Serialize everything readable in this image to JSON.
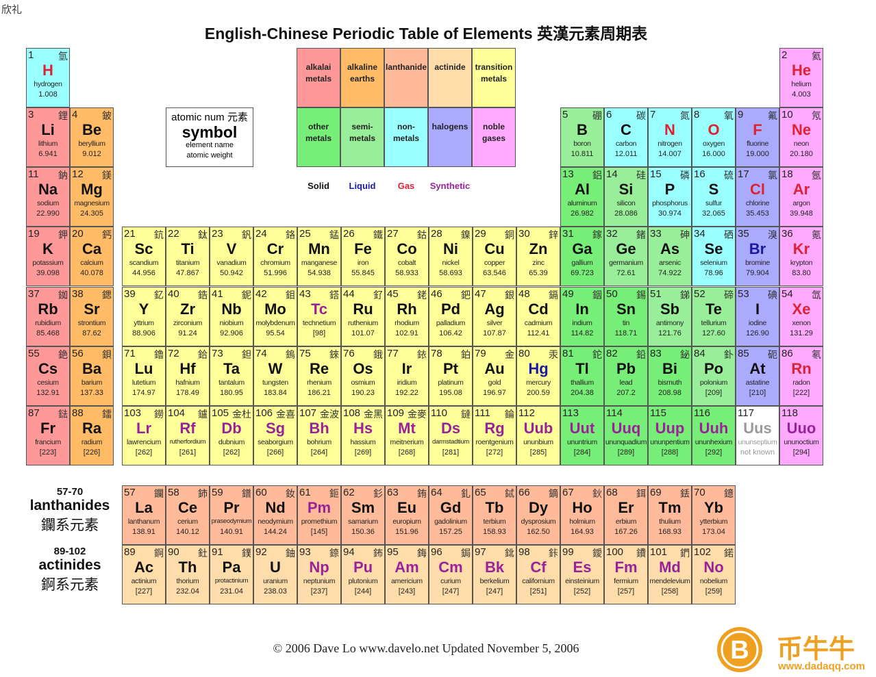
{
  "corner_text": "欣礼",
  "title": "English-Chinese Periodic Table of Elements 英漢元素周期表",
  "colors": {
    "a": "#ff9999",
    "e": "#ffbb66",
    "l": "#ffbb99",
    "c": "#ffddaa",
    "t": "#ffff99",
    "o": "#77ee77",
    "s": "#99ee99",
    "n": "#99ffff",
    "h": "#aaaaff",
    "g": "#ffaaff",
    "x": "#ffffff"
  },
  "state_colors": {
    "s": "#111111",
    "l": "#1a1aa0",
    "g": "#dd2233",
    "y": "#992299",
    "u": "#999999"
  },
  "legend": {
    "categories": [
      {
        "code": "a",
        "label": "alkalai metals"
      },
      {
        "code": "e",
        "label": "alkaline earths"
      },
      {
        "code": "l",
        "label": "lanthanide"
      },
      {
        "code": "c",
        "label": "actinide"
      },
      {
        "code": "t",
        "label": "transition metals"
      },
      {
        "code": "o",
        "label": "other metals"
      },
      {
        "code": "s",
        "label": "semi- metals"
      },
      {
        "code": "n",
        "label": "non- metals"
      },
      {
        "code": "h",
        "label": "halogens"
      },
      {
        "code": "g",
        "label": "noble gases"
      }
    ],
    "states": [
      {
        "code": "s",
        "label": "Solid"
      },
      {
        "code": "l",
        "label": "Liquid"
      },
      {
        "code": "g",
        "label": "Gas"
      },
      {
        "code": "y",
        "label": "Synthetic"
      }
    ]
  },
  "key": {
    "line1": "atomic num 元素",
    "symbol": "symbol",
    "name": "element name",
    "weight": "atomic weight"
  },
  "elements": [
    [
      1,
      "H",
      "hydrogen",
      "1.008",
      "氫",
      "n",
      "g",
      1,
      1
    ],
    [
      2,
      "He",
      "helium",
      "4.003",
      "氦",
      "g",
      "g",
      1,
      18
    ],
    [
      3,
      "Li",
      "lithium",
      "6.941",
      "鋰",
      "a",
      "s",
      2,
      1
    ],
    [
      4,
      "Be",
      "beryllium",
      "9.012",
      "鈹",
      "e",
      "s",
      2,
      2
    ],
    [
      5,
      "B",
      "boron",
      "10.811",
      "硼",
      "s",
      "s",
      2,
      13
    ],
    [
      6,
      "C",
      "carbon",
      "12.011",
      "碳",
      "n",
      "s",
      2,
      14
    ],
    [
      7,
      "N",
      "nitrogen",
      "14.007",
      "氮",
      "n",
      "g",
      2,
      15
    ],
    [
      8,
      "O",
      "oxygen",
      "16.000",
      "氧",
      "n",
      "g",
      2,
      16
    ],
    [
      9,
      "F",
      "fluorine",
      "19.000",
      "氟",
      "h",
      "g",
      2,
      17
    ],
    [
      10,
      "Ne",
      "neon",
      "20.180",
      "氖",
      "g",
      "g",
      2,
      18
    ],
    [
      11,
      "Na",
      "sodium",
      "22.990",
      "鈉",
      "a",
      "s",
      3,
      1
    ],
    [
      12,
      "Mg",
      "magnesium",
      "24.305",
      "鎂",
      "e",
      "s",
      3,
      2
    ],
    [
      13,
      "Al",
      "aluminum",
      "26.982",
      "鋁",
      "o",
      "s",
      3,
      13
    ],
    [
      14,
      "Si",
      "silicon",
      "28.086",
      "硅",
      "s",
      "s",
      3,
      14
    ],
    [
      15,
      "P",
      "phosphorus",
      "30.974",
      "磷",
      "n",
      "s",
      3,
      15
    ],
    [
      16,
      "S",
      "sulfur",
      "32.065",
      "硫",
      "n",
      "s",
      3,
      16
    ],
    [
      17,
      "Cl",
      "chlorine",
      "35.453",
      "氯",
      "h",
      "g",
      3,
      17
    ],
    [
      18,
      "Ar",
      "argon",
      "39.948",
      "氬",
      "g",
      "g",
      3,
      18
    ],
    [
      19,
      "K",
      "potassium",
      "39.098",
      "鉀",
      "a",
      "s",
      4,
      1
    ],
    [
      20,
      "Ca",
      "calcium",
      "40.078",
      "鈣",
      "e",
      "s",
      4,
      2
    ],
    [
      21,
      "Sc",
      "scandium",
      "44.956",
      "鈧",
      "t",
      "s",
      4,
      3
    ],
    [
      22,
      "Ti",
      "titanium",
      "47.867",
      "鈦",
      "t",
      "s",
      4,
      4
    ],
    [
      23,
      "V",
      "vanadium",
      "50.942",
      "釩",
      "t",
      "s",
      4,
      5
    ],
    [
      24,
      "Cr",
      "chromium",
      "51.996",
      "鉻",
      "t",
      "s",
      4,
      6
    ],
    [
      25,
      "Mn",
      "manganese",
      "54.938",
      "錳",
      "t",
      "s",
      4,
      7
    ],
    [
      26,
      "Fe",
      "iron",
      "55.845",
      "鐵",
      "t",
      "s",
      4,
      8
    ],
    [
      27,
      "Co",
      "cobalt",
      "58.933",
      "鈷",
      "t",
      "s",
      4,
      9
    ],
    [
      28,
      "Ni",
      "nickel",
      "58.693",
      "鎳",
      "t",
      "s",
      4,
      10
    ],
    [
      29,
      "Cu",
      "copper",
      "63.546",
      "銅",
      "t",
      "s",
      4,
      11
    ],
    [
      30,
      "Zn",
      "zinc",
      "65.39",
      "鋅",
      "t",
      "s",
      4,
      12
    ],
    [
      31,
      "Ga",
      "gallium",
      "69.723",
      "鎵",
      "o",
      "s",
      4,
      13
    ],
    [
      32,
      "Ge",
      "germanium",
      "72.61",
      "鍺",
      "s",
      "s",
      4,
      14
    ],
    [
      33,
      "As",
      "arsenic",
      "74.922",
      "砷",
      "s",
      "s",
      4,
      15
    ],
    [
      34,
      "Se",
      "selenium",
      "78.96",
      "硒",
      "n",
      "s",
      4,
      16
    ],
    [
      35,
      "Br",
      "bromine",
      "79.904",
      "溴",
      "h",
      "l",
      4,
      17
    ],
    [
      36,
      "Kr",
      "krypton",
      "83.80",
      "氪",
      "g",
      "g",
      4,
      18
    ],
    [
      37,
      "Rb",
      "rubidium",
      "85.468",
      "銣",
      "a",
      "s",
      5,
      1
    ],
    [
      38,
      "Sr",
      "strontium",
      "87.62",
      "鍶",
      "e",
      "s",
      5,
      2
    ],
    [
      39,
      "Y",
      "yttrium",
      "88.906",
      "釔",
      "t",
      "s",
      5,
      3
    ],
    [
      40,
      "Zr",
      "zirconium",
      "91.24",
      "鋯",
      "t",
      "s",
      5,
      4
    ],
    [
      41,
      "Nb",
      "niobium",
      "92.906",
      "鈮",
      "t",
      "s",
      5,
      5
    ],
    [
      42,
      "Mo",
      "molybdenum",
      "95.54",
      "鉬",
      "t",
      "s",
      5,
      6
    ],
    [
      43,
      "Tc",
      "technetium",
      "[98]",
      "鎝",
      "t",
      "y",
      5,
      7
    ],
    [
      44,
      "Ru",
      "ruthenium",
      "101.07",
      "釕",
      "t",
      "s",
      5,
      8
    ],
    [
      45,
      "Rh",
      "rhodium",
      "102.91",
      "銠",
      "t",
      "s",
      5,
      9
    ],
    [
      46,
      "Pd",
      "palladium",
      "106.42",
      "鈀",
      "t",
      "s",
      5,
      10
    ],
    [
      47,
      "Ag",
      "silver",
      "107.87",
      "銀",
      "t",
      "s",
      5,
      11
    ],
    [
      48,
      "Cd",
      "cadmium",
      "112.41",
      "鎘",
      "t",
      "s",
      5,
      12
    ],
    [
      49,
      "In",
      "indium",
      "114.82",
      "銦",
      "o",
      "s",
      5,
      13
    ],
    [
      50,
      "Sn",
      "tin",
      "118.71",
      "錫",
      "o",
      "s",
      5,
      14
    ],
    [
      51,
      "Sb",
      "antimony",
      "121.76",
      "銻",
      "s",
      "s",
      5,
      15
    ],
    [
      52,
      "Te",
      "tellurium",
      "127.60",
      "碲",
      "s",
      "s",
      5,
      16
    ],
    [
      53,
      "I",
      "iodine",
      "126.90",
      "碘",
      "h",
      "s",
      5,
      17
    ],
    [
      54,
      "Xe",
      "xenon",
      "131.29",
      "氙",
      "g",
      "g",
      5,
      18
    ],
    [
      55,
      "Cs",
      "cesium",
      "132.91",
      "銫",
      "a",
      "s",
      6,
      1
    ],
    [
      56,
      "Ba",
      "barium",
      "137.33",
      "鋇",
      "e",
      "s",
      6,
      2
    ],
    [
      71,
      "Lu",
      "lutetium",
      "174.97",
      "鑥",
      "t",
      "s",
      6,
      3
    ],
    [
      72,
      "Hf",
      "hafnium",
      "178.49",
      "鉿",
      "t",
      "s",
      6,
      4
    ],
    [
      73,
      "Ta",
      "tantalum",
      "180.95",
      "鉭",
      "t",
      "s",
      6,
      5
    ],
    [
      74,
      "W",
      "tungsten",
      "183.84",
      "鎢",
      "t",
      "s",
      6,
      6
    ],
    [
      75,
      "Re",
      "rhenium",
      "186.21",
      "錸",
      "t",
      "s",
      6,
      7
    ],
    [
      76,
      "Os",
      "osmium",
      "190.23",
      "鋨",
      "t",
      "s",
      6,
      8
    ],
    [
      77,
      "Ir",
      "iridium",
      "192.22",
      "銥",
      "t",
      "s",
      6,
      9
    ],
    [
      78,
      "Pt",
      "platinum",
      "195.08",
      "鉑",
      "t",
      "s",
      6,
      10
    ],
    [
      79,
      "Au",
      "gold",
      "196.97",
      "金",
      "t",
      "s",
      6,
      11
    ],
    [
      80,
      "Hg",
      "mercury",
      "200.59",
      "汞",
      "t",
      "l",
      6,
      12
    ],
    [
      81,
      "Tl",
      "thallium",
      "204.38",
      "鉈",
      "o",
      "s",
      6,
      13
    ],
    [
      82,
      "Pb",
      "lead",
      "207.2",
      "鉛",
      "o",
      "s",
      6,
      14
    ],
    [
      83,
      "Bi",
      "bismuth",
      "208.98",
      "鉍",
      "o",
      "s",
      6,
      15
    ],
    [
      84,
      "Po",
      "polonium",
      "[209]",
      "釙",
      "s",
      "s",
      6,
      16
    ],
    [
      85,
      "At",
      "astatine",
      "[210]",
      "砈",
      "h",
      "s",
      6,
      17
    ],
    [
      86,
      "Rn",
      "radon",
      "[222]",
      "氡",
      "g",
      "g",
      6,
      18
    ],
    [
      87,
      "Fr",
      "francium",
      "[223]",
      "鍅",
      "a",
      "s",
      7,
      1
    ],
    [
      88,
      "Ra",
      "radium",
      "[226]",
      "鐳",
      "e",
      "s",
      7,
      2
    ],
    [
      103,
      "Lr",
      "lawrencium",
      "[262]",
      "鐒",
      "t",
      "y",
      7,
      3
    ],
    [
      104,
      "Rf",
      "rutherfordium",
      "[261]",
      "鑪",
      "t",
      "y",
      7,
      4
    ],
    [
      105,
      "Db",
      "dubnium",
      "[262]",
      "金杜",
      "t",
      "y",
      7,
      5
    ],
    [
      106,
      "Sg",
      "seaborgium",
      "[266]",
      "金喜",
      "t",
      "y",
      7,
      6
    ],
    [
      107,
      "Bh",
      "bohrium",
      "[264]",
      "金波",
      "t",
      "y",
      7,
      7
    ],
    [
      108,
      "Hs",
      "hassium",
      "[269]",
      "金黑",
      "t",
      "y",
      7,
      8
    ],
    [
      109,
      "Mt",
      "meitnerium",
      "[268]",
      "金麥",
      "t",
      "y",
      7,
      9
    ],
    [
      110,
      "Ds",
      "darmstadtium",
      "[281]",
      "鐽",
      "t",
      "y",
      7,
      10
    ],
    [
      111,
      "Rg",
      "roentgenium",
      "[272]",
      "錀",
      "t",
      "y",
      7,
      11
    ],
    [
      112,
      "Uub",
      "ununbium",
      "[285]",
      "",
      "t",
      "y",
      7,
      12
    ],
    [
      113,
      "Uut",
      "ununtrium",
      "[284]",
      "",
      "o",
      "y",
      7,
      13
    ],
    [
      114,
      "Uuq",
      "ununquadium",
      "[289]",
      "",
      "o",
      "y",
      7,
      14
    ],
    [
      115,
      "Uup",
      "ununpentium",
      "[288]",
      "",
      "o",
      "y",
      7,
      15
    ],
    [
      116,
      "Uuh",
      "ununhexium",
      "[292]",
      "",
      "o",
      "y",
      7,
      16
    ],
    [
      117,
      "Uus",
      "ununseptium",
      "not known",
      "",
      "x",
      "u",
      7,
      17
    ],
    [
      118,
      "Uuo",
      "ununoctium",
      "[294]",
      "",
      "g",
      "y",
      7,
      18
    ]
  ],
  "lanthanides": {
    "range": "57-70",
    "label": "lanthanides",
    "label_zh": "鑭系元素",
    "elements": [
      [
        57,
        "La",
        "lanthanum",
        "138.91",
        "鑭",
        "l",
        "s"
      ],
      [
        58,
        "Ce",
        "cerium",
        "140.12",
        "鈰",
        "l",
        "s"
      ],
      [
        59,
        "Pr",
        "praseodymium",
        "140.91",
        "鐠",
        "l",
        "s"
      ],
      [
        60,
        "Nd",
        "neodymium",
        "144.24",
        "釹",
        "l",
        "s"
      ],
      [
        61,
        "Pm",
        "promethium",
        "[145]",
        "鉕",
        "l",
        "y"
      ],
      [
        62,
        "Sm",
        "samarium",
        "150.36",
        "釤",
        "l",
        "s"
      ],
      [
        63,
        "Eu",
        "europium",
        "151.96",
        "銪",
        "l",
        "s"
      ],
      [
        64,
        "Gd",
        "gadolinium",
        "157.25",
        "釓",
        "l",
        "s"
      ],
      [
        65,
        "Tb",
        "terbium",
        "158.93",
        "鋱",
        "l",
        "s"
      ],
      [
        66,
        "Dy",
        "dysprosium",
        "162.50",
        "鏑",
        "l",
        "s"
      ],
      [
        67,
        "Ho",
        "holmium",
        "164.93",
        "鈥",
        "l",
        "s"
      ],
      [
        68,
        "Er",
        "erbium",
        "167.26",
        "鉺",
        "l",
        "s"
      ],
      [
        69,
        "Tm",
        "thulium",
        "168.93",
        "銩",
        "l",
        "s"
      ],
      [
        70,
        "Yb",
        "ytterbium",
        "173.04",
        "鐿",
        "l",
        "s"
      ]
    ]
  },
  "actinides": {
    "range": "89-102",
    "label": "actinides",
    "label_zh": "錒系元素",
    "elements": [
      [
        89,
        "Ac",
        "actinium",
        "[227]",
        "錒",
        "c",
        "s"
      ],
      [
        90,
        "Th",
        "thorium",
        "232.04",
        "釷",
        "c",
        "s"
      ],
      [
        91,
        "Pa",
        "protactinium",
        "231.04",
        "鏷",
        "c",
        "s"
      ],
      [
        92,
        "U",
        "uranium",
        "238.03",
        "鈾",
        "c",
        "s"
      ],
      [
        93,
        "Np",
        "neptunium",
        "[237]",
        "錼",
        "c",
        "y"
      ],
      [
        94,
        "Pu",
        "plutonium",
        "[244]",
        "鈽",
        "c",
        "y"
      ],
      [
        95,
        "Am",
        "americium",
        "[243]",
        "鋂",
        "c",
        "y"
      ],
      [
        96,
        "Cm",
        "curium",
        "[247]",
        "鋦",
        "c",
        "y"
      ],
      [
        97,
        "Bk",
        "berkelium",
        "[247]",
        "鉳",
        "c",
        "y"
      ],
      [
        98,
        "Cf",
        "californium",
        "[251]",
        "鉲",
        "c",
        "y"
      ],
      [
        99,
        "Es",
        "einsteinium",
        "[252]",
        "鑀",
        "c",
        "y"
      ],
      [
        100,
        "Fm",
        "fermium",
        "[257]",
        "鐨",
        "c",
        "y"
      ],
      [
        101,
        "Md",
        "mendelevium",
        "[258]",
        "鍆",
        "c",
        "y"
      ],
      [
        102,
        "No",
        "nobelium",
        "[259]",
        "鍩",
        "c",
        "y"
      ]
    ]
  },
  "footer": "© 2006 Dave Lo   www.davelo.net   Updated November 5, 2006",
  "watermark": {
    "brand": "币牛牛",
    "url": "www.dadaqq.com",
    "color": "#f0a020"
  }
}
